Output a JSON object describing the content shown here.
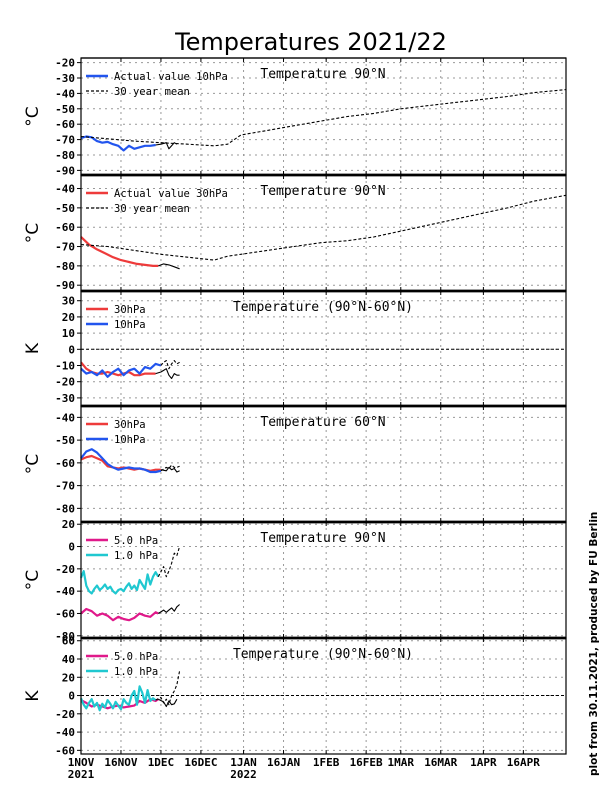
{
  "title": "Temperatures 2021/22",
  "credit": "plot from 30.11.2021, produced by FU Berlin",
  "colors": {
    "red": "#ee3b3b",
    "blue": "#2255ee",
    "magenta": "#e0198a",
    "cyan": "#20c8d0",
    "black": "#000000"
  },
  "x_axis": {
    "range_days": [
      0,
      182
    ],
    "ticks": [
      {
        "day": 0,
        "label": "1NOV",
        "sub": "2021"
      },
      {
        "day": 15,
        "label": "16NOV"
      },
      {
        "day": 30,
        "label": "1DEC"
      },
      {
        "day": 45,
        "label": "16DEC"
      },
      {
        "day": 61,
        "label": "1JAN",
        "sub": "2022"
      },
      {
        "day": 76,
        "label": "16JAN"
      },
      {
        "day": 92,
        "label": "1FEB"
      },
      {
        "day": 107,
        "label": "16FEB"
      },
      {
        "day": 120,
        "label": "1MAR"
      },
      {
        "day": 135,
        "label": "16MAR"
      },
      {
        "day": 151,
        "label": "1APR"
      },
      {
        "day": 166,
        "label": "16APR"
      }
    ]
  },
  "chart_data": [
    {
      "type": "line",
      "title": "Temperature 90°N",
      "ylabel": "°C",
      "ylim": [
        -93,
        -17
      ],
      "yticks": [
        -90,
        -80,
        -70,
        -60,
        -50,
        -40,
        -30,
        -20
      ],
      "series": [
        {
          "name": "Actual value 10hPa",
          "color": "blue",
          "style": "solid",
          "legend": true,
          "x": [
            0,
            2,
            4,
            6,
            8,
            10,
            12,
            14,
            16,
            18,
            20,
            22,
            24,
            26,
            28
          ],
          "y": [
            -69,
            -68,
            -68.5,
            -71,
            -72,
            -71.5,
            -73,
            -74,
            -77,
            -74,
            -76,
            -75,
            -74,
            -74,
            -73.5
          ]
        },
        {
          "name": "30 year mean",
          "color": "black",
          "style": "dashed",
          "legend": true,
          "x": [
            0,
            10,
            20,
            30,
            40,
            50,
            55,
            60,
            70,
            80,
            90,
            100,
            110,
            120,
            130,
            140,
            150,
            160,
            170,
            182
          ],
          "y": [
            -68,
            -69.5,
            -71,
            -72,
            -73,
            -74,
            -73,
            -67,
            -64,
            -61,
            -58,
            -55,
            -53,
            -50,
            -48,
            -46,
            -44,
            -42,
            -39.5,
            -37.5
          ]
        },
        {
          "name": "10hPa forecast",
          "color": "black",
          "style": "solid",
          "legend": false,
          "x": [
            28,
            30,
            32,
            33,
            34,
            35,
            36
          ],
          "y": [
            -73.5,
            -73,
            -72,
            -76,
            -74,
            -72,
            -73
          ]
        }
      ]
    },
    {
      "type": "line",
      "title": "Temperature 90°N",
      "ylabel": "°C",
      "ylim": [
        -93,
        -33
      ],
      "yticks": [
        -90,
        -80,
        -70,
        -60,
        -50,
        -40
      ],
      "series": [
        {
          "name": "Actual value 30hPa",
          "color": "red",
          "style": "solid",
          "legend": true,
          "x": [
            0,
            3,
            6,
            9,
            12,
            15,
            18,
            21,
            24,
            27,
            29
          ],
          "y": [
            -65,
            -69,
            -71.5,
            -73.5,
            -75.5,
            -77,
            -78,
            -79,
            -79.5,
            -80,
            -80
          ]
        },
        {
          "name": "30 year mean",
          "color": "black",
          "style": "dashed",
          "legend": true,
          "x": [
            0,
            10,
            20,
            30,
            40,
            50,
            55,
            60,
            70,
            80,
            90,
            100,
            110,
            120,
            130,
            140,
            150,
            160,
            170,
            182
          ],
          "y": [
            -69,
            -70,
            -72,
            -74,
            -75.5,
            -77,
            -75,
            -74,
            -72,
            -70,
            -68,
            -67,
            -65,
            -62,
            -59,
            -56,
            -53,
            -50,
            -46.5,
            -43.5
          ]
        },
        {
          "name": "30hPa forecast",
          "color": "black",
          "style": "solid",
          "legend": false,
          "x": [
            29,
            31,
            33,
            35,
            37
          ],
          "y": [
            -80,
            -79,
            -79.5,
            -80.5,
            -81.5
          ]
        }
      ]
    },
    {
      "type": "line",
      "title": "Temperature (90°N-60°N)",
      "ylabel": "K",
      "ylim": [
        -35,
        36
      ],
      "yticks": [
        -30,
        -20,
        -10,
        0,
        10,
        20,
        30
      ],
      "zero_line": true,
      "series": [
        {
          "name": "30hPa",
          "color": "red",
          "style": "solid",
          "legend": true,
          "x": [
            0,
            2,
            4,
            6,
            8,
            10,
            12,
            14,
            16,
            18,
            20,
            22,
            24,
            26,
            28
          ],
          "y": [
            -8,
            -12,
            -14,
            -15,
            -15,
            -14,
            -15,
            -16,
            -15,
            -14,
            -16,
            -16,
            -15,
            -15,
            -15
          ]
        },
        {
          "name": "10hPa",
          "color": "blue",
          "style": "solid",
          "legend": true,
          "x": [
            0,
            2,
            4,
            6,
            8,
            10,
            12,
            14,
            16,
            18,
            20,
            22,
            24,
            26,
            28,
            30
          ],
          "y": [
            -12,
            -15,
            -14,
            -16,
            -13,
            -17,
            -14,
            -12,
            -16,
            -13,
            -12,
            -15,
            -11,
            -12,
            -9,
            -10
          ]
        },
        {
          "name": "10hPa forecast",
          "color": "black",
          "style": "dashed",
          "legend": false,
          "x": [
            30,
            31,
            32,
            33,
            34,
            35,
            36,
            37
          ],
          "y": [
            -10,
            -8,
            -7,
            -12,
            -9,
            -7,
            -9,
            -8
          ]
        },
        {
          "name": "30hPa forecast",
          "color": "black",
          "style": "solid",
          "legend": false,
          "x": [
            28,
            30,
            31,
            32,
            33,
            34,
            35,
            36,
            37
          ],
          "y": [
            -15,
            -14,
            -13,
            -12,
            -16,
            -18,
            -15,
            -16,
            -16
          ]
        }
      ]
    },
    {
      "type": "line",
      "title": "Temperature 60°N",
      "ylabel": "°C",
      "ylim": [
        -86,
        -35
      ],
      "yticks": [
        -80,
        -70,
        -60,
        -50,
        -40
      ],
      "series": [
        {
          "name": "30hPa",
          "color": "red",
          "style": "solid",
          "legend": true,
          "x": [
            0,
            2,
            4,
            6,
            8,
            10,
            12,
            14,
            16,
            18,
            20,
            22,
            24,
            26,
            28,
            30
          ],
          "y": [
            -58.5,
            -57.5,
            -57,
            -58,
            -59,
            -61.5,
            -62,
            -62.5,
            -62,
            -62.5,
            -63,
            -62.5,
            -63,
            -63.5,
            -63,
            -63
          ]
        },
        {
          "name": "10hPa",
          "color": "blue",
          "style": "solid",
          "legend": true,
          "x": [
            0,
            2,
            4,
            6,
            8,
            10,
            12,
            14,
            16,
            18,
            20,
            22,
            24,
            26,
            28,
            30
          ],
          "y": [
            -58,
            -55,
            -54,
            -55.5,
            -58,
            -60.5,
            -62,
            -63,
            -62.5,
            -62,
            -62.5,
            -62.5,
            -63,
            -64,
            -64,
            -63.5
          ]
        },
        {
          "name": "10hPa forecast",
          "color": "black",
          "style": "dashed",
          "legend": false,
          "x": [
            30,
            32,
            33,
            34,
            35,
            36,
            37
          ],
          "y": [
            -63.5,
            -62,
            -62.5,
            -61,
            -62,
            -62,
            -61.5
          ]
        },
        {
          "name": "30hPa forecast",
          "color": "black",
          "style": "solid",
          "legend": false,
          "x": [
            30,
            32,
            33,
            34,
            35,
            36,
            37
          ],
          "y": [
            -63,
            -63.5,
            -62,
            -63,
            -62.5,
            -64,
            -63.5
          ]
        }
      ]
    },
    {
      "type": "line",
      "title": "Temperature 90°N",
      "ylabel": "°C",
      "ylim": [
        -82,
        22
      ],
      "yticks": [
        -80,
        -60,
        -40,
        -20,
        0,
        20
      ],
      "series": [
        {
          "name": "5.0 hPa",
          "color": "magenta",
          "style": "solid",
          "legend": true,
          "x": [
            0,
            2,
            4,
            6,
            8,
            10,
            12,
            14,
            16,
            18,
            20,
            22,
            24,
            26,
            28,
            29
          ],
          "y": [
            -60,
            -56,
            -58,
            -62,
            -60,
            -62,
            -66,
            -63,
            -65,
            -66,
            -64,
            -60,
            -62,
            -63,
            -59,
            -60
          ]
        },
        {
          "name": "1.0 hPa",
          "color": "cyan",
          "style": "solid",
          "legend": true,
          "x": [
            0,
            1,
            2,
            3,
            4,
            5,
            6,
            7,
            8,
            9,
            10,
            11,
            12,
            13,
            14,
            15,
            16,
            17,
            18,
            19,
            20,
            21,
            22,
            23,
            24,
            25,
            26,
            27,
            28,
            29
          ],
          "y": [
            -28,
            -22,
            -35,
            -40,
            -42,
            -38,
            -35,
            -39,
            -37,
            -34,
            -38,
            -36,
            -40,
            -42,
            -39,
            -38,
            -40,
            -36,
            -33,
            -38,
            -35,
            -39,
            -30,
            -34,
            -38,
            -25,
            -34,
            -27,
            -23,
            -27
          ]
        },
        {
          "name": "1.0 hPa forecast",
          "color": "black",
          "style": "dashed",
          "legend": false,
          "x": [
            29,
            31,
            32,
            33,
            34,
            35,
            36,
            37
          ],
          "y": [
            -27,
            -18,
            -27,
            -22,
            -15,
            -6,
            -8,
            0
          ]
        },
        {
          "name": "5.0 hPa forecast",
          "color": "black",
          "style": "solid",
          "legend": false,
          "x": [
            29,
            31,
            32,
            33,
            34,
            35,
            36,
            37
          ],
          "y": [
            -60,
            -57,
            -59,
            -57,
            -55,
            -58,
            -54,
            -52
          ]
        }
      ]
    },
    {
      "type": "line",
      "title": "Temperature (90°N-60°N)",
      "ylabel": "K",
      "ylim": [
        -64,
        63
      ],
      "yticks": [
        -60,
        -40,
        -20,
        0,
        20,
        40,
        60
      ],
      "zero_line": true,
      "series": [
        {
          "name": "5.0 hPa",
          "color": "magenta",
          "style": "solid",
          "legend": true,
          "x": [
            0,
            2,
            4,
            6,
            8,
            10,
            12,
            14,
            16,
            18,
            20,
            22,
            24,
            26,
            28,
            29
          ],
          "y": [
            -5,
            -8,
            -12,
            -10,
            -12,
            -14,
            -12,
            -11,
            -13,
            -12,
            -11,
            -6,
            -8,
            -4,
            -6,
            -4
          ]
        },
        {
          "name": "1.0 hPa",
          "color": "cyan",
          "style": "solid",
          "legend": true,
          "x": [
            0,
            1,
            2,
            3,
            4,
            5,
            6,
            7,
            8,
            9,
            10,
            11,
            12,
            13,
            14,
            15,
            16,
            17,
            18,
            19,
            20,
            21,
            22,
            23,
            24,
            25,
            26,
            27,
            28
          ],
          "y": [
            -3,
            -10,
            -14,
            -8,
            -4,
            -12,
            -8,
            -16,
            -9,
            -13,
            -5,
            -9,
            -14,
            -7,
            -11,
            -15,
            -4,
            -8,
            -10,
            0,
            5,
            -10,
            10,
            3,
            -8,
            6,
            -6,
            -3,
            -5
          ]
        },
        {
          "name": "1.0 hPa forecast",
          "color": "black",
          "style": "dashed",
          "legend": false,
          "x": [
            28,
            30,
            31,
            32,
            33,
            34,
            35,
            36,
            37
          ],
          "y": [
            -5,
            -2,
            -8,
            -4,
            -10,
            0,
            5,
            12,
            27
          ]
        },
        {
          "name": "5.0 hPa forecast",
          "color": "black",
          "style": "solid",
          "legend": false,
          "x": [
            29,
            31,
            32,
            33,
            34,
            35,
            36
          ],
          "y": [
            -4,
            -7,
            -12,
            -6,
            -10,
            -9,
            -4
          ]
        }
      ]
    }
  ]
}
